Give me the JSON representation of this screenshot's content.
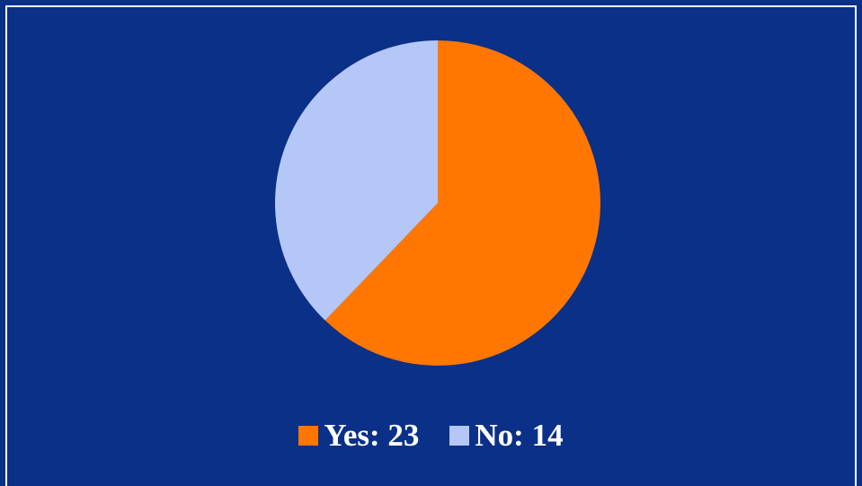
{
  "chart_data": {
    "type": "pie",
    "series": [
      {
        "name": "Yes",
        "value": 23,
        "color": "#ff7700"
      },
      {
        "name": "No",
        "value": 14,
        "color": "#b4c7f7"
      }
    ],
    "legend_position": "bottom",
    "legend_separator": ": ",
    "background_color": "#0a3087",
    "border_color": "#ffffff"
  }
}
